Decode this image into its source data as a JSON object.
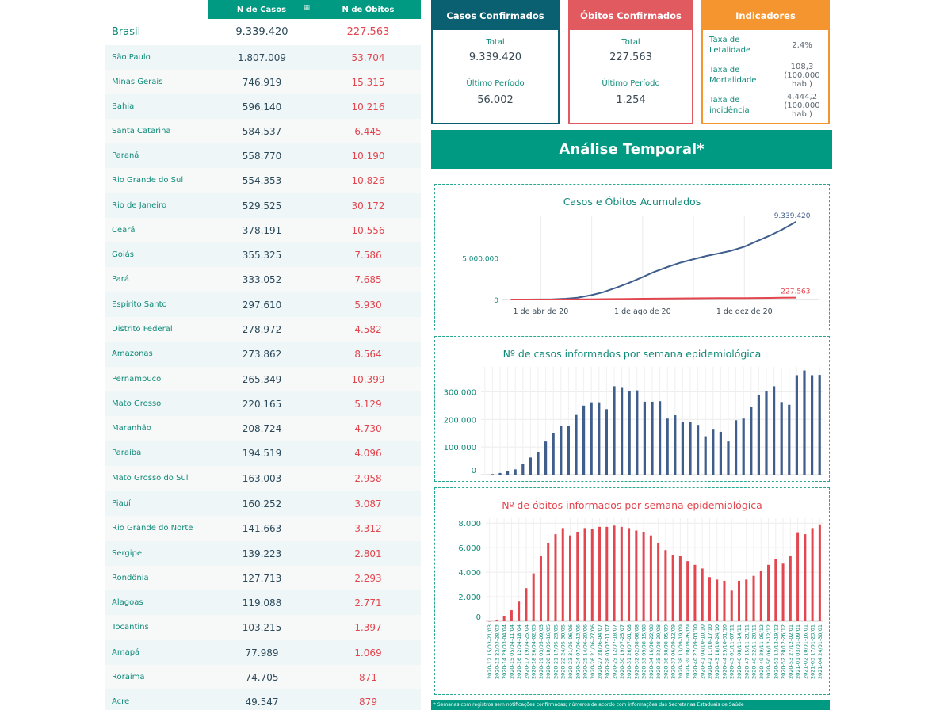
{
  "table": {
    "col_cases": "N de Casos",
    "col_deaths": "N de Óbitos",
    "rows": [
      {
        "name": "Brasil",
        "cases": "9.339.420",
        "deaths": "227.563"
      },
      {
        "name": "São Paulo",
        "cases": "1.807.009",
        "deaths": "53.704"
      },
      {
        "name": "Minas Gerais",
        "cases": "746.919",
        "deaths": "15.315"
      },
      {
        "name": "Bahia",
        "cases": "596.140",
        "deaths": "10.216"
      },
      {
        "name": "Santa Catarina",
        "cases": "584.537",
        "deaths": "6.445"
      },
      {
        "name": "Paraná",
        "cases": "558.770",
        "deaths": "10.190"
      },
      {
        "name": "Rio Grande do Sul",
        "cases": "554.353",
        "deaths": "10.826"
      },
      {
        "name": "Rio de Janeiro",
        "cases": "529.525",
        "deaths": "30.172"
      },
      {
        "name": "Ceará",
        "cases": "378.191",
        "deaths": "10.556"
      },
      {
        "name": "Goiás",
        "cases": "355.325",
        "deaths": "7.586"
      },
      {
        "name": "Pará",
        "cases": "333.052",
        "deaths": "7.685"
      },
      {
        "name": "Espírito Santo",
        "cases": "297.610",
        "deaths": "5.930"
      },
      {
        "name": "Distrito Federal",
        "cases": "278.972",
        "deaths": "4.582"
      },
      {
        "name": "Amazonas",
        "cases": "273.862",
        "deaths": "8.564"
      },
      {
        "name": "Pernambuco",
        "cases": "265.349",
        "deaths": "10.399"
      },
      {
        "name": "Mato Grosso",
        "cases": "220.165",
        "deaths": "5.129"
      },
      {
        "name": "Maranhão",
        "cases": "208.724",
        "deaths": "4.730"
      },
      {
        "name": "Paraíba",
        "cases": "194.519",
        "deaths": "4.096"
      },
      {
        "name": "Mato Grosso do Sul",
        "cases": "163.003",
        "deaths": "2.958"
      },
      {
        "name": "Piauí",
        "cases": "160.252",
        "deaths": "3.087"
      },
      {
        "name": "Rio Grande do Norte",
        "cases": "141.663",
        "deaths": "3.312"
      },
      {
        "name": "Sergipe",
        "cases": "139.223",
        "deaths": "2.801"
      },
      {
        "name": "Rondônia",
        "cases": "127.713",
        "deaths": "2.293"
      },
      {
        "name": "Alagoas",
        "cases": "119.088",
        "deaths": "2.771"
      },
      {
        "name": "Tocantins",
        "cases": "103.215",
        "deaths": "1.397"
      },
      {
        "name": "Amapá",
        "cases": "77.989",
        "deaths": "1.069"
      },
      {
        "name": "Roraima",
        "cases": "74.705",
        "deaths": "871"
      },
      {
        "name": "Acre",
        "cases": "49.547",
        "deaths": "879"
      }
    ]
  },
  "cards": {
    "cases": {
      "title": "Casos Confirmados",
      "total_label": "Total",
      "total": "9.339.420",
      "period_label": "Último Período",
      "period": "56.002"
    },
    "deaths": {
      "title": "Óbitos Confirmados",
      "total_label": "Total",
      "total": "227.563",
      "period_label": "Último Período",
      "period": "1.254"
    },
    "indicators": {
      "title": "Indicadores",
      "items": [
        {
          "label": "Taxa de Letalidade",
          "value": "2,4%"
        },
        {
          "label": "Taxa de Mortalidade",
          "value": "108,3 (100.000 hab.)"
        },
        {
          "label": "Taxa de incidência",
          "value": "4.444,2 (100.000 hab.)"
        }
      ]
    }
  },
  "banner": "Análise Temporal*",
  "colors": {
    "accent": "#009a82",
    "cases": "#0a6070",
    "deaths": "#e05a60",
    "indicators": "#f4952f",
    "line_cases": "#3f5e8c",
    "line_deaths": "#e2464f"
  },
  "footnote": "* Semanas com registros sem notificações confirmadas; números de acordo com informações das Secretarias Estaduais de Saúde",
  "chart_data": [
    {
      "type": "line",
      "title": "Casos e Óbitos Acumulados",
      "x_tick_labels": [
        "1 de abr de 20",
        "1 de ago de 20",
        "1 de dez de 20"
      ],
      "y_tick_labels": [
        "0",
        "5.000.000"
      ],
      "ylim": [
        0,
        10000000
      ],
      "x": [
        "2020-02-25",
        "2020-03-15",
        "2020-04-01",
        "2020-04-15",
        "2020-05-01",
        "2020-05-15",
        "2020-06-01",
        "2020-06-15",
        "2020-07-01",
        "2020-07-15",
        "2020-08-01",
        "2020-08-15",
        "2020-09-01",
        "2020-09-15",
        "2020-10-01",
        "2020-10-15",
        "2020-11-01",
        "2020-11-15",
        "2020-12-01",
        "2020-12-15",
        "2021-01-01",
        "2021-01-15",
        "2021-02-01"
      ],
      "series": [
        {
          "values": [
            0,
            200,
            6800,
            28000,
            92000,
            219000,
            530000,
            890000,
            1450000,
            1970000,
            2700000,
            3320000,
            3950000,
            4420000,
            4850000,
            5200000,
            5550000,
            5860000,
            6350000,
            6970000,
            7700000,
            8390000,
            9339420
          ],
          "end_label": "9.339.420"
        },
        {
          "values": [
            0,
            0,
            240,
            1700,
            6300,
            14800,
            30000,
            44000,
            60000,
            76000,
            93000,
            107000,
            122000,
            133000,
            145000,
            153000,
            160000,
            165000,
            173000,
            182000,
            195000,
            209000,
            227563
          ],
          "end_label": "227.563"
        }
      ]
    },
    {
      "type": "bar",
      "title": "Nº de casos informados por semana epidemiológica",
      "y_tick_labels": [
        "0",
        "100.000",
        "200.000",
        "300.000"
      ],
      "ylim": [
        0,
        390000
      ],
      "values": [
        0,
        2000,
        6000,
        14000,
        19000,
        39000,
        62000,
        81000,
        120000,
        151000,
        175000,
        177000,
        216000,
        250000,
        262000,
        262000,
        237000,
        320000,
        314000,
        303000,
        305000,
        264000,
        264000,
        266000,
        203000,
        215000,
        191000,
        190000,
        180000,
        139000,
        163000,
        155000,
        120000,
        197000,
        203000,
        246000,
        288000,
        301000,
        320000,
        263000,
        253000,
        360000,
        377000,
        360000,
        361000
      ]
    },
    {
      "type": "bar",
      "title": "Nº de óbitos informados por semana epidemiológica",
      "y_tick_labels": [
        "0",
        "2.000",
        "4.000",
        "6.000",
        "8.000"
      ],
      "ylim": [
        0,
        8400
      ],
      "categories": [
        "2020-12 15/03-21/03",
        "2020-13 22/03-28/03",
        "2020-14 29/03-04/04",
        "2020-15 05/04-11/04",
        "2020-16 12/04-18/04",
        "2020-17 19/04-25/04",
        "2020-18 26/04-02/05",
        "2020-19 03/05-09/05",
        "2020-20 10/05-16/05",
        "2020-21 17/05-23/05",
        "2020-22 24/05-30/05",
        "2020-23 31/05-06/06",
        "2020-24 07/06-13/06",
        "2020-25 14/06-20/06",
        "2020-26 21/06-27/06",
        "2020-27 28/06-04/07",
        "2020-28 05/07-11/07",
        "2020-29 12/07-18/07",
        "2020-30 19/07-25/07",
        "2020-31 26/07-01/08",
        "2020-32 02/08-08/08",
        "2020-33 09/08-15/08",
        "2020-34 16/08-22/08",
        "2020-35 23/08-29/08",
        "2020-36 30/08-05/09",
        "2020-37 06/09-12/09",
        "2020-38 13/09-19/09",
        "2020-39 20/09-26/09",
        "2020-40 27/09-03/10",
        "2020-41 04/10-10/10",
        "2020-42 11/10-17/10",
        "2020-43 18/10-24/10",
        "2020-44 25/10-31/10",
        "2020-45 01/11-07/11",
        "2020-46 08/11-14/11",
        "2020-47 15/11-21/11",
        "2020-48 22/11-28/11",
        "2020-49 29/11-05/12",
        "2020-50 06/12-12/12",
        "2020-51 13/12-19/12",
        "2020-52 20/12-26/12",
        "2020-53 27/12-02/01",
        "2021-01 03/01-09/01",
        "2021-02 10/01-16/01",
        "2021-03 17/01-23/01",
        "2021-04 24/01-30/01"
      ],
      "values": [
        0,
        100,
        400,
        900,
        1600,
        2700,
        3900,
        5300,
        6400,
        7100,
        7600,
        7000,
        7300,
        7600,
        7500,
        7700,
        7700,
        7800,
        7700,
        7600,
        7400,
        7300,
        7000,
        6400,
        5800,
        5400,
        5300,
        4900,
        4600,
        4300,
        3600,
        3400,
        3300,
        2500,
        3300,
        3400,
        3700,
        4100,
        4600,
        5100,
        4700,
        5300,
        7200,
        7100,
        7600,
        7900
      ]
    }
  ]
}
